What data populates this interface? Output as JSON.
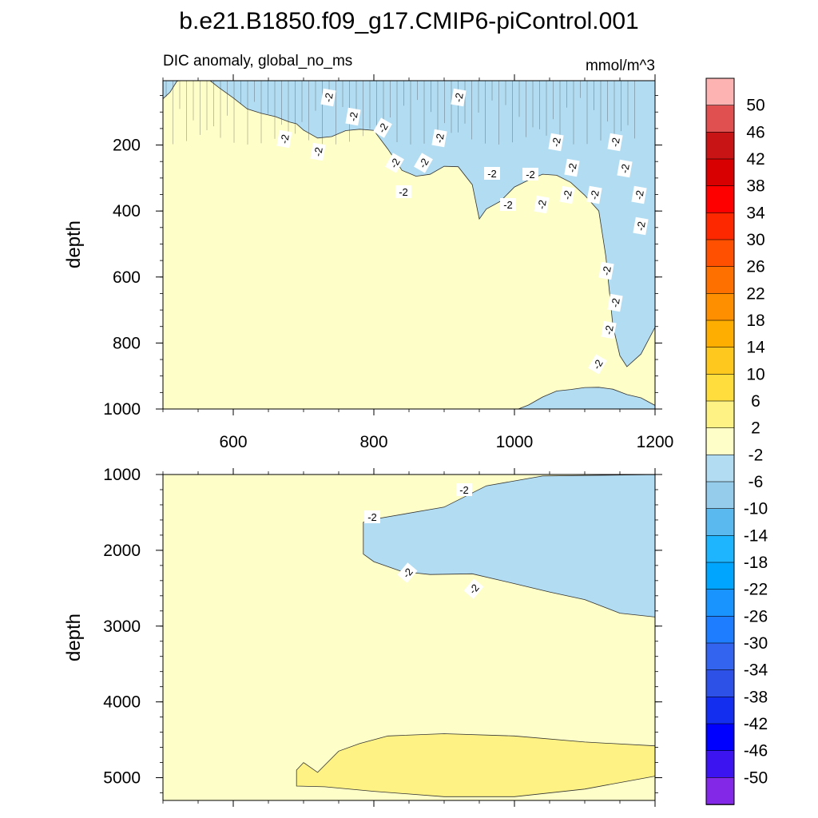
{
  "title": "b.e21.B1850.f09_g17.CMIP6-piControl.001",
  "subtitle_left": "DIC anomaly, global_no_ms",
  "subtitle_right": "mmol/m^3",
  "colors": {
    "below_-2": "#b2dcf1",
    "between_-2_2": "#fefec8",
    "between_2_6": "#fef285",
    "contour_line": "#333333",
    "label_bg": "#ffffff"
  },
  "chart_data": [
    {
      "type": "heatmap",
      "panel": "top",
      "title": "b.e21.B1850.f09_g17.CMIP6-piControl.001",
      "xlabel": "",
      "ylabel": "depth",
      "xlim": [
        500,
        1200
      ],
      "ylim": [
        1000,
        5
      ],
      "y_reversed": true,
      "x_ticks": [
        600,
        800,
        1000,
        1200
      ],
      "y_ticks": [
        200,
        400,
        600,
        800,
        1000
      ],
      "contour_interval": 4,
      "contour_labels": [
        "-2",
        "-2",
        "-2",
        "-2",
        "-2",
        "-2",
        "-2",
        "-2",
        "-2",
        "-2",
        "-2",
        "-2",
        "-2",
        "-2",
        "-2",
        "-2",
        "-2",
        "-2",
        "-2",
        "-2",
        "-2",
        "-2",
        "-2",
        "-2",
        "-2",
        "-2"
      ],
      "regions": [
        {
          "level_range": "< -2",
          "color": "#b2dcf1",
          "boundary": [
            [
              500,
              5
            ],
            [
              500,
              60
            ],
            [
              510,
              40
            ],
            [
              520,
              5
            ],
            [
              560,
              5
            ],
            [
              580,
              40
            ],
            [
              600,
              60
            ],
            [
              620,
              80
            ],
            [
              640,
              90
            ],
            [
              660,
              110
            ],
            [
              680,
              140
            ],
            [
              690,
              150
            ],
            [
              700,
              160
            ],
            [
              720,
              170
            ],
            [
              740,
              160
            ],
            [
              760,
              150
            ],
            [
              780,
              160
            ],
            [
              800,
              170
            ],
            [
              820,
              220
            ],
            [
              840,
              270
            ],
            [
              860,
              280
            ],
            [
              880,
              280
            ],
            [
              900,
              270
            ],
            [
              920,
              280
            ],
            [
              940,
              330
            ],
            [
              950,
              420
            ],
            [
              960,
              380
            ],
            [
              980,
              360
            ],
            [
              1000,
              330
            ],
            [
              1020,
              320
            ],
            [
              1040,
              300
            ],
            [
              1060,
              290
            ],
            [
              1080,
              300
            ],
            [
              1100,
              340
            ],
            [
              1120,
              400
            ],
            [
              1130,
              550
            ],
            [
              1140,
              760
            ],
            [
              1150,
              840
            ],
            [
              1160,
              860
            ],
            [
              1180,
              820
            ],
            [
              1200,
              750
            ],
            [
              1200,
              1000
            ],
            [
              1180,
              980
            ],
            [
              1160,
              960
            ],
            [
              1140,
              930
            ],
            [
              1120,
              920
            ],
            [
              1100,
              930
            ],
            [
              1080,
              950
            ],
            [
              1060,
              960
            ],
            [
              1040,
              970
            ],
            [
              1020,
              980
            ],
            [
              1000,
              990
            ],
            [
              995,
              1000
            ],
            [
              1200,
              1000
            ],
            [
              1200,
              5
            ]
          ]
        }
      ]
    },
    {
      "type": "heatmap",
      "panel": "bottom",
      "xlabel": "",
      "ylabel": "depth",
      "xlim": [
        500,
        1200
      ],
      "ylim": [
        5300,
        1000
      ],
      "y_reversed": true,
      "x_ticks": [
        600,
        800,
        1000,
        1200
      ],
      "y_ticks": [
        1000,
        2000,
        3000,
        4000,
        5000
      ],
      "contour_labels": [
        "-2",
        "-2",
        "-2",
        "-2"
      ],
      "regions": [
        {
          "level_range": "< -2",
          "color": "#b2dcf1",
          "boundary": [
            [
              1210,
              1000
            ],
            [
              1040,
              1020
            ],
            [
              960,
              1150
            ],
            [
              900,
              1430
            ],
            [
              800,
              1590
            ],
            [
              785,
              1630
            ],
            [
              785,
              2050
            ],
            [
              800,
              2150
            ],
            [
              840,
              2280
            ],
            [
              880,
              2320
            ],
            [
              940,
              2310
            ],
            [
              1000,
              2440
            ],
            [
              1050,
              2550
            ],
            [
              1100,
              2650
            ],
            [
              1150,
              2830
            ],
            [
              1200,
              2880
            ],
            [
              1200,
              1000
            ]
          ]
        },
        {
          "level_range": "2 to 6",
          "color": "#fef285",
          "boundary": [
            [
              690,
              4900
            ],
            [
              700,
              4800
            ],
            [
              720,
              4930
            ],
            [
              750,
              4650
            ],
            [
              780,
              4550
            ],
            [
              820,
              4450
            ],
            [
              900,
              4420
            ],
            [
              1000,
              4450
            ],
            [
              1100,
              4530
            ],
            [
              1200,
              4580
            ],
            [
              1200,
              4980
            ],
            [
              1100,
              5150
            ],
            [
              1000,
              5250
            ],
            [
              900,
              5250
            ],
            [
              800,
              5180
            ],
            [
              730,
              5120
            ],
            [
              690,
              5110
            ],
            [
              690,
              4900
            ]
          ]
        }
      ]
    }
  ],
  "colorbar": {
    "boundaries": [
      "50",
      "46",
      "42",
      "38",
      "34",
      "30",
      "26",
      "22",
      "18",
      "14",
      "10",
      "6",
      "2",
      "-2",
      "-6",
      "-10",
      "-14",
      "-18",
      "-22",
      "-26",
      "-30",
      "-34",
      "-38",
      "-42",
      "-46",
      "-50"
    ],
    "swatches": [
      "#feb3b3",
      "#e05050",
      "#c81414",
      "#d80000",
      "#fe0000",
      "#fe2800",
      "#fe5000",
      "#fe7000",
      "#fe9000",
      "#feae00",
      "#fec81e",
      "#fedd3c",
      "#fef285",
      "#fefec8",
      "#b2dcf1",
      "#96cceb",
      "#5ab9ef",
      "#1eb4fe",
      "#00a6fe",
      "#1993fe",
      "#1e7dfe",
      "#3264f0",
      "#2d50e6",
      "#142ef0",
      "#0000fe",
      "#3c14f0",
      "#8228e6"
    ]
  }
}
